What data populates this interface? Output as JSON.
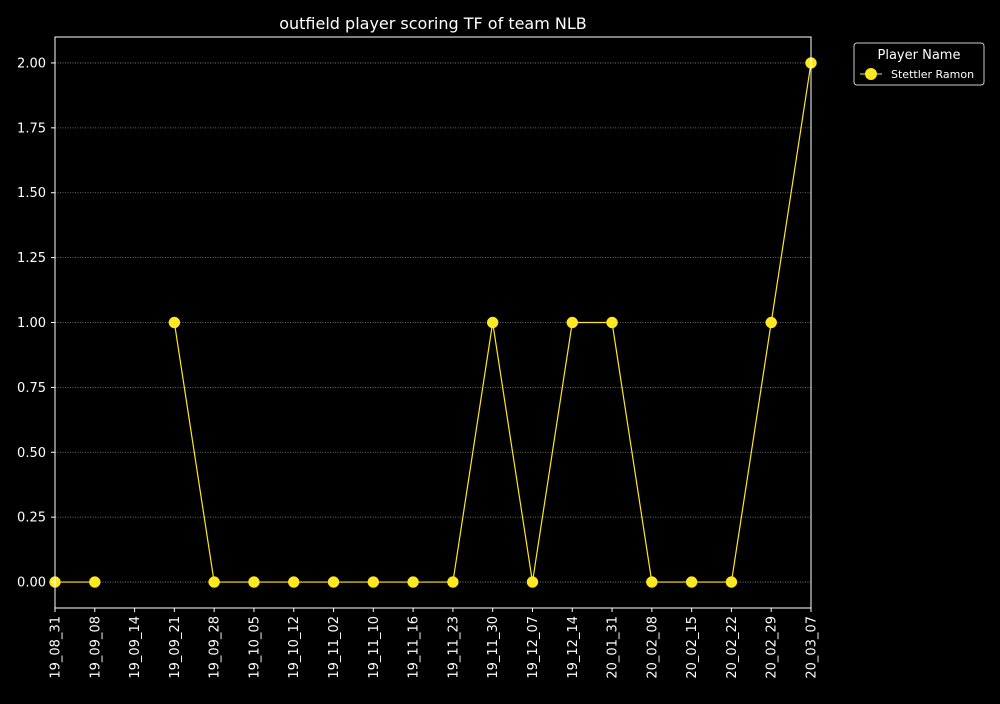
{
  "chart_data": {
    "type": "line",
    "title": "outfield player scoring TF of team NLB",
    "xlabel": "",
    "ylabel": "",
    "categories": [
      "19_08_31",
      "19_09_08",
      "19_09_14",
      "19_09_21",
      "19_09_28",
      "19_10_05",
      "19_10_12",
      "19_11_02",
      "19_11_10",
      "19_11_16",
      "19_11_23",
      "19_11_30",
      "19_12_07",
      "19_12_14",
      "20_01_31",
      "20_02_08",
      "20_02_15",
      "20_02_22",
      "20_02_29",
      "20_03_07"
    ],
    "series": [
      {
        "name": "Stettler Ramon",
        "values": [
          0,
          0,
          null,
          1,
          0,
          0,
          0,
          0,
          0,
          0,
          0,
          1,
          0,
          1,
          1,
          0,
          0,
          0,
          1,
          2
        ]
      }
    ],
    "ylim": [
      -0.1,
      2.1
    ],
    "yticks": [
      0.0,
      0.25,
      0.5,
      0.75,
      1.0,
      1.25,
      1.5,
      1.75,
      2.0
    ],
    "ytick_labels": [
      "0.00",
      "0.25",
      "0.50",
      "0.75",
      "1.00",
      "1.25",
      "1.50",
      "1.75",
      "2.00"
    ],
    "grid": "horizontal-dotted",
    "legend": {
      "title": "Player Name",
      "position": "outside-top-right"
    },
    "colors": {
      "background": "#000000",
      "foreground": "#ffffff",
      "series": "#ffe81f",
      "grid": "#8a8a8a"
    }
  }
}
